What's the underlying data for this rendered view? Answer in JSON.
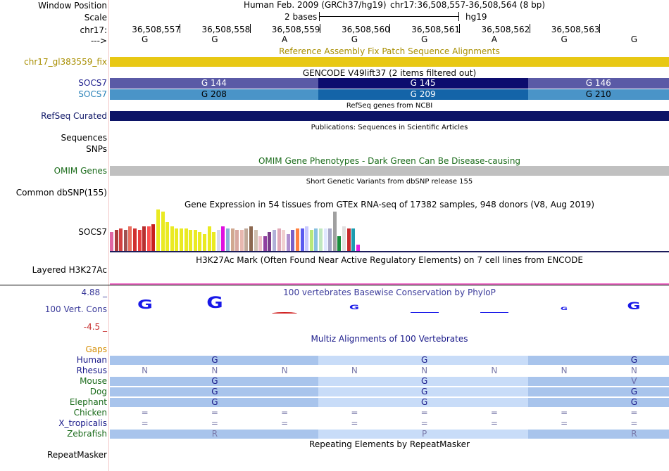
{
  "header": {
    "window_position_label": "Window Position",
    "scale_label": "Scale",
    "chrom_label": "chr17:",
    "strand_label": "--->",
    "assembly": "Human Feb. 2009 (GRCh37/hg19)",
    "position": "chr17:36,508,557-36,508,564 (8 bp)",
    "scale_text": "2 bases",
    "db": "hg19",
    "coords": [
      "36,508,557",
      "36,508,558",
      "36,508,559",
      "36,508,560",
      "36,508,561",
      "36,508,562",
      "36,508,563"
    ],
    "bases": [
      "G",
      "G",
      "A",
      "G",
      "G",
      "A",
      "G",
      "G"
    ]
  },
  "tracks": {
    "fix_patch": {
      "title": "Reference Assembly Fix Patch Sequence Alignments",
      "label": "chr17_gl383559_fix",
      "color": "#e8c814"
    },
    "gencode": {
      "title": "GENCODE V49lift37 (2 items filtered out)",
      "rows": [
        {
          "label": "SOCS7",
          "label_color": "#1e1e8c",
          "segments": [
            "G 144",
            "G 145",
            "G 146"
          ],
          "colors": [
            "#5a5aa6",
            "#0c0c6e",
            "#5a5aa6"
          ]
        },
        {
          "label": "SOCS7",
          "label_color": "#2a82b8",
          "segments": [
            "G 208",
            "G 209",
            "G 210"
          ],
          "colors": [
            "#4a94c8",
            "#1464a8",
            "#4a94c8"
          ]
        }
      ]
    },
    "refseq": {
      "title": "RefSeq genes from NCBI",
      "label": "RefSeq Curated",
      "color": "#0c1466"
    },
    "publications": {
      "title": "Publications: Sequences in Scientific Articles",
      "labels": [
        "Sequences",
        "SNPs"
      ]
    },
    "omim": {
      "title": "OMIM Gene Phenotypes - Dark Green Can Be Disease-causing",
      "label": "OMIM Genes",
      "color": "#c0c0c0"
    },
    "dbsnp": {
      "title": "Short Genetic Variants from dbSNP release 155",
      "label": "Common dbSNP(155)"
    },
    "gtex": {
      "title": "Gene Expression in 54 tissues from GTEx RNA-seq of 17382 samples, 948 donors (V8, Aug 2019)",
      "label": "SOCS7",
      "levels": [
        0.45,
        0.5,
        0.55,
        0.5,
        0.6,
        0.55,
        0.5,
        0.6,
        0.6,
        0.65,
        1.0,
        0.95,
        0.7,
        0.6,
        0.55,
        0.55,
        0.55,
        0.5,
        0.5,
        0.45,
        0.4,
        0.6,
        0.45,
        0.5,
        0.6,
        0.55,
        0.55,
        0.5,
        0.5,
        0.55,
        0.6,
        0.5,
        0.35,
        0.35,
        0.45,
        0.5,
        0.55,
        0.5,
        0.4,
        0.5,
        0.55,
        0.55,
        0.6,
        0.5,
        0.55,
        0.55,
        0.55,
        0.55,
        0.95,
        0.35,
        0.6,
        0.55,
        0.55,
        0.15
      ],
      "colors": [
        "#e066a4",
        "#aa3c3c",
        "#d44040",
        "#a05050",
        "#e87060",
        "#d03030",
        "#e83c3c",
        "#b83030",
        "#ff5050",
        "#c81e1e",
        "#eaea22",
        "#eaea22",
        "#eaea22",
        "#eaea22",
        "#eaea22",
        "#eaea22",
        "#eaea22",
        "#eaea22",
        "#eaea22",
        "#eaea22",
        "#eaea22",
        "#eaea22",
        "#eaea22",
        "#d8d8f0",
        "#e010e0",
        "#8ab0d8",
        "#d0a890",
        "#d8a8a0",
        "#e8b8b0",
        "#c0a898",
        "#8c6850",
        "#d0c0b0",
        "#f0c0c8",
        "#9040a0",
        "#7a3c8a",
        "#b0b0d8",
        "#e0a8b8",
        "#f0d0d0",
        "#b090d0",
        "#7860c8",
        "#ff8040",
        "#5a5af0",
        "#c8c8ff",
        "#b8e878",
        "#88c0e0",
        "#c0e8c0",
        "#e0e8ff",
        "#a8a8c8",
        "#a0a0a0",
        "#188c3c",
        "#e0e0e0",
        "#c8282c",
        "#1c9cb0",
        "#e020e0"
      ]
    },
    "h3k27ac": {
      "title": "H3K27Ac Mark (Often Found Near Active Regulatory Elements) on 7 cell lines from ENCODE",
      "label": "Layered H3K27Ac"
    },
    "phylop": {
      "title": "100 vertebrates Basewise Conservation by PhyloP",
      "label": "100 Vert. Cons",
      "max": "4.88 _",
      "min": "-4.5 _",
      "scores": [
        4.0,
        4.88,
        -0.8,
        2.0,
        0.3,
        0.0,
        1.2,
        3.2
      ],
      "letters": [
        "G",
        "G",
        "A",
        "G",
        "G",
        "A",
        "G",
        "G"
      ]
    },
    "multiz": {
      "title": "Multiz Alignments of 100 Vertebrates",
      "species": [
        {
          "name": "Gaps",
          "color": "#d48c00",
          "letters": [
            "",
            "",
            "",
            "",
            "",
            "",
            "",
            ""
          ]
        },
        {
          "name": "Human",
          "color": "#1a1a8a",
          "letters": [
            "",
            "G",
            "",
            "",
            "G",
            "",
            "",
            "G"
          ]
        },
        {
          "name": "Rhesus",
          "color": "#1a1a8a",
          "letters": [
            "N",
            "N",
            "N",
            "N",
            "N",
            "N",
            "N",
            "N"
          ]
        },
        {
          "name": "Mouse",
          "color": "#1a6b1a",
          "letters": [
            "",
            "G",
            "",
            "",
            "G",
            "",
            "",
            "V"
          ]
        },
        {
          "name": "Dog",
          "color": "#1a6b1a",
          "letters": [
            "",
            "G",
            "",
            "",
            "G",
            "",
            "",
            "G"
          ]
        },
        {
          "name": "Elephant",
          "color": "#1a6b1a",
          "letters": [
            "",
            "G",
            "",
            "",
            "G",
            "",
            "",
            "G"
          ]
        },
        {
          "name": "Chicken",
          "color": "#1a6b1a",
          "letters": [
            "=",
            "=",
            "=",
            "=",
            "=",
            "=",
            "=",
            "="
          ]
        },
        {
          "name": "X_tropicalis",
          "color": "#1a1a8a",
          "letters": [
            "=",
            "=",
            "=",
            "=",
            "=",
            "=",
            "=",
            "="
          ]
        },
        {
          "name": "Zebrafish",
          "color": "#1a6b1a",
          "letters": [
            "",
            "R",
            "",
            "",
            "P",
            "",
            "",
            "R"
          ]
        }
      ]
    },
    "repeatmasker": {
      "title": "Repeating Elements by RepeatMasker",
      "label": "RepeatMasker"
    }
  }
}
